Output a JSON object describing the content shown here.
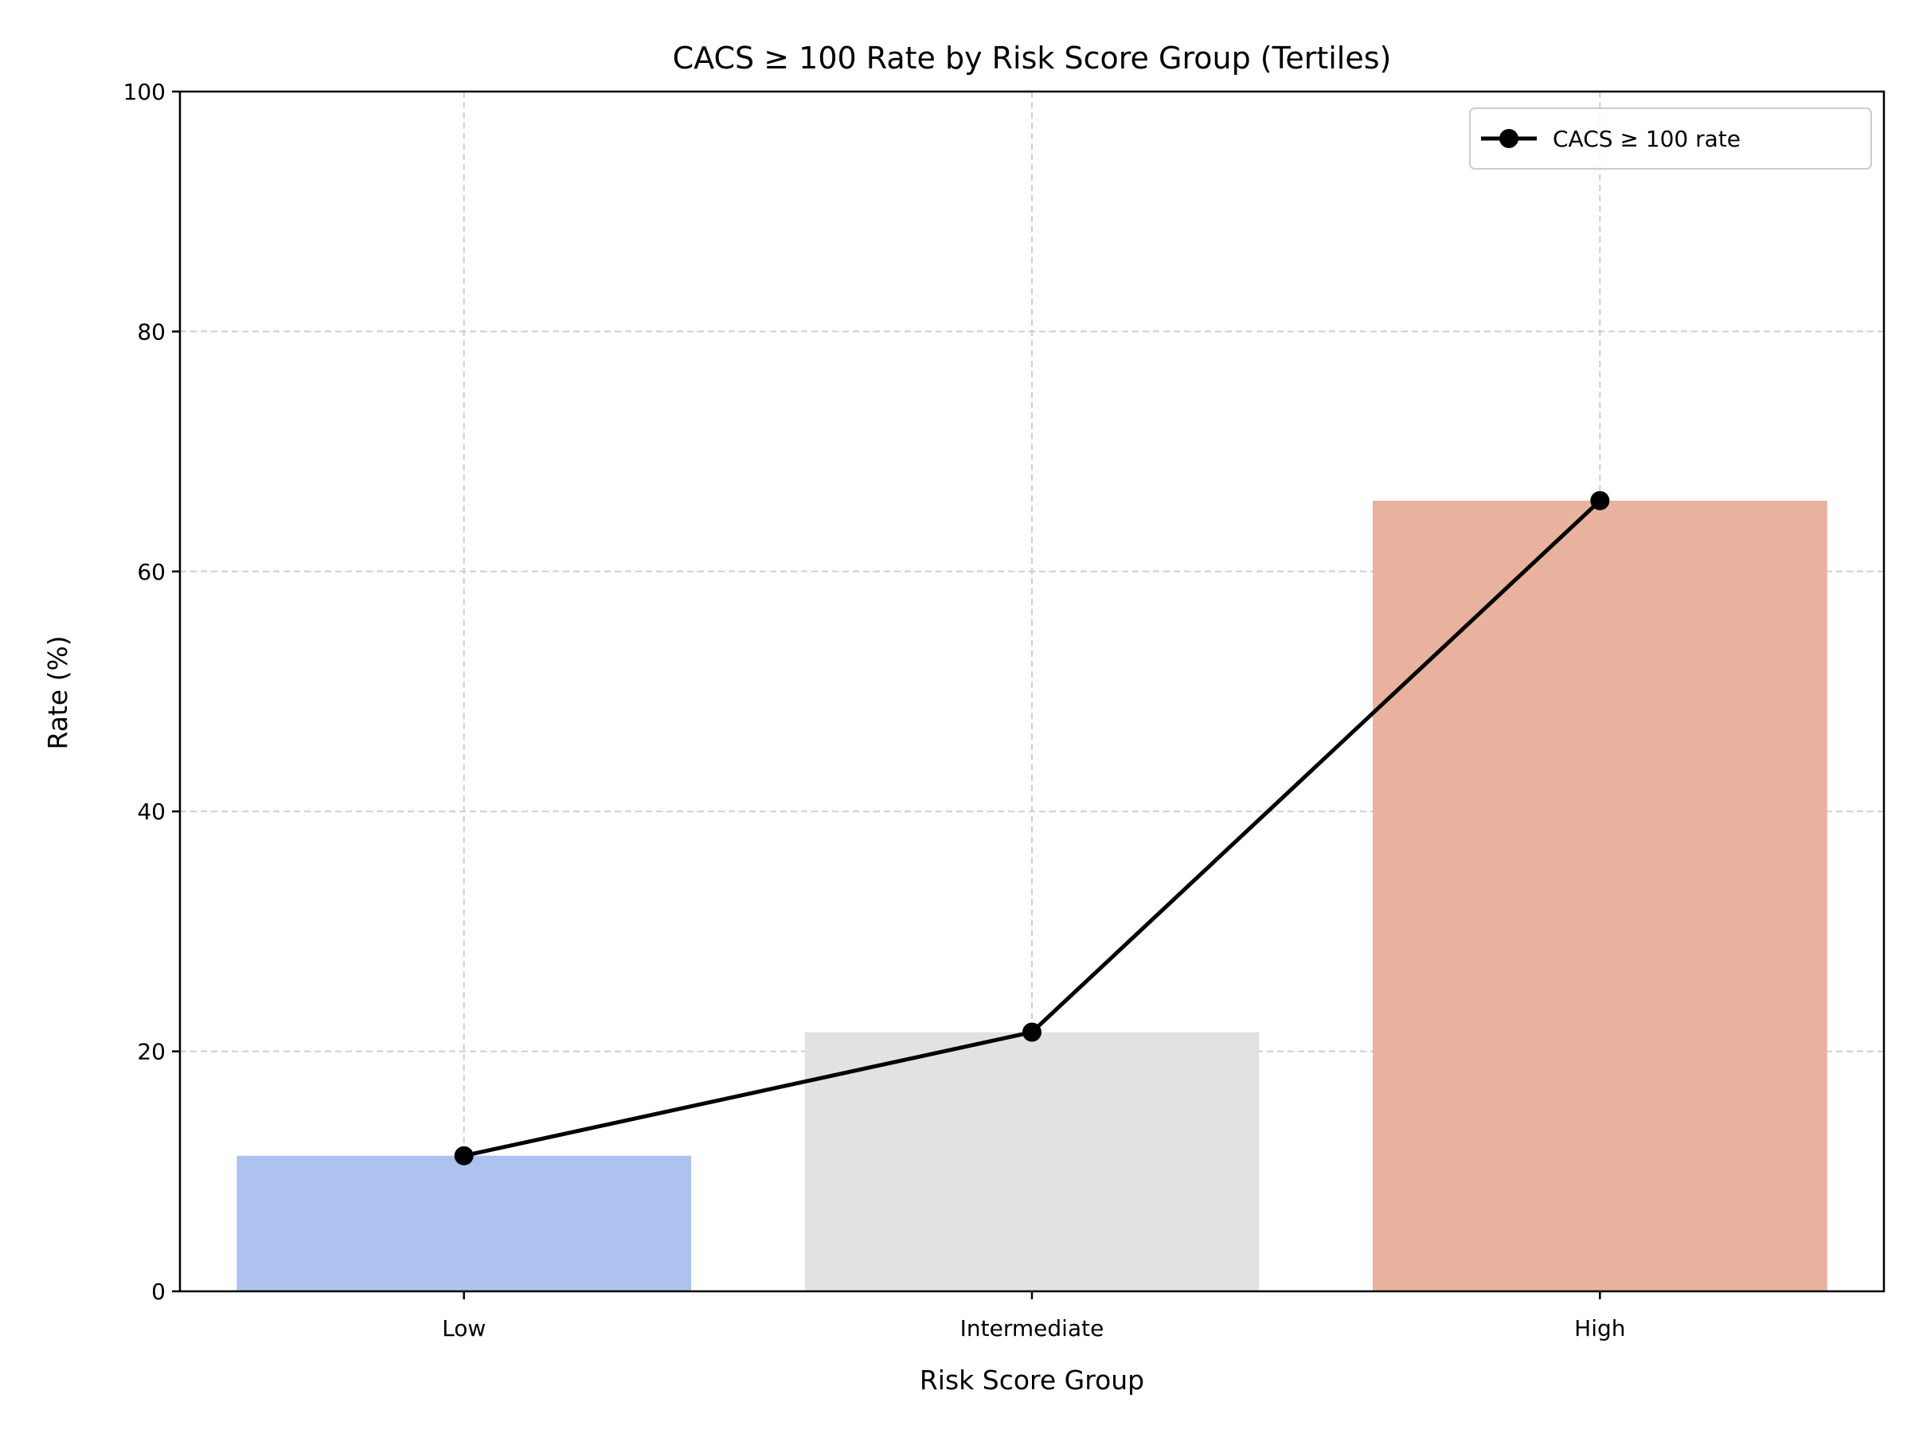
{
  "chart_data": {
    "type": "bar",
    "title": "CACS ≥ 100 Rate by Risk Score Group (Tertiles)",
    "xlabel": "Risk Score Group",
    "ylabel": "Rate (%)",
    "categories": [
      "Low",
      "Intermediate",
      "High"
    ],
    "values": [
      11.3,
      21.6,
      65.9
    ],
    "bar_colors": [
      "#aec2f0",
      "#e2e2e2",
      "#e8b29e"
    ],
    "ylim": [
      0,
      100
    ],
    "yticks": [
      0,
      20,
      40,
      60,
      80,
      100
    ],
    "grid": true,
    "line_series": {
      "name": "CACS ≥ 100 rate",
      "values": [
        11.3,
        21.6,
        65.9
      ],
      "color": "#000000",
      "marker": "circle"
    },
    "legend_position": "top-right"
  }
}
